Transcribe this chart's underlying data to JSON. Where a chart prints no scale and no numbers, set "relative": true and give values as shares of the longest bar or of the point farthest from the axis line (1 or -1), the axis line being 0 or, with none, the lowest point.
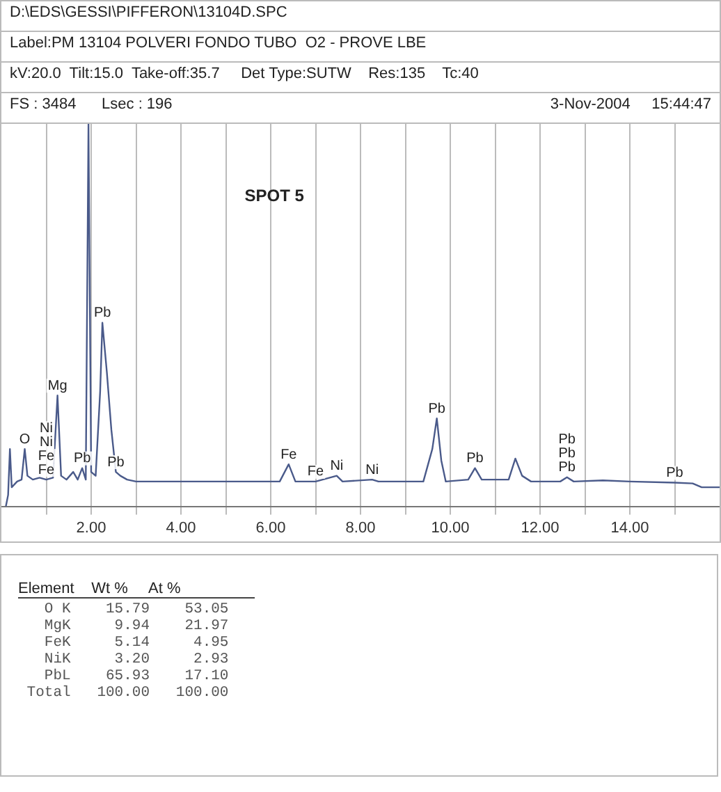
{
  "chart_data": {
    "type": "line",
    "title": "SPOT 5",
    "relative": true,
    "grid": "x",
    "legend": false,
    "marker": "none",
    "line_style": "solid",
    "xlim": [
      0,
      16
    ],
    "xticks": [
      {
        "value": 1,
        "label": null
      },
      {
        "value": 2,
        "label": "2.00"
      },
      {
        "value": 3,
        "label": null
      },
      {
        "value": 4,
        "label": "4.00"
      },
      {
        "value": 5,
        "label": null
      },
      {
        "value": 6,
        "label": "6.00"
      },
      {
        "value": 7,
        "label": null
      },
      {
        "value": 8,
        "label": "8.00"
      },
      {
        "value": 9,
        "label": null
      },
      {
        "value": 10,
        "label": "10.00"
      },
      {
        "value": 11,
        "label": null
      },
      {
        "value": 12,
        "label": "12.00"
      },
      {
        "value": 13,
        "label": null
      },
      {
        "value": 14,
        "label": "14.00"
      },
      {
        "value": 15,
        "label": null
      }
    ],
    "series": [
      {
        "color": "#4a5a8a",
        "x": [
          0.1,
          0.15,
          0.19,
          0.23,
          0.35,
          0.45,
          0.52,
          0.58,
          0.7,
          0.85,
          1.0,
          1.15,
          1.25,
          1.33,
          1.45,
          1.6,
          1.7,
          1.8,
          1.88,
          1.94,
          2.0,
          2.1,
          2.2,
          2.25,
          2.35,
          2.45,
          2.55,
          2.65,
          2.8,
          3.0,
          4.0,
          5.0,
          6.2,
          6.4,
          6.55,
          7.0,
          7.47,
          7.6,
          8.26,
          8.4,
          9.4,
          9.6,
          9.7,
          9.8,
          9.9,
          10.4,
          10.55,
          10.7,
          11.3,
          11.45,
          11.6,
          11.8,
          12.45,
          12.6,
          12.75,
          13.4,
          14.0,
          15.0,
          15.4,
          15.6,
          16.0
        ],
        "values": [
          0,
          0.03,
          0.15,
          0.05,
          0.065,
          0.07,
          0.15,
          0.08,
          0.07,
          0.075,
          0.07,
          0.075,
          0.29,
          0.08,
          0.07,
          0.09,
          0.07,
          0.1,
          0.07,
          1,
          0.09,
          0.08,
          0.3,
          0.48,
          0.35,
          0.2,
          0.09,
          0.08,
          0.07,
          0.065,
          0.065,
          0.065,
          0.065,
          0.11,
          0.065,
          0.065,
          0.08,
          0.065,
          0.07,
          0.065,
          0.065,
          0.15,
          0.23,
          0.12,
          0.065,
          0.07,
          0.1,
          0.07,
          0.07,
          0.125,
          0.08,
          0.065,
          0.065,
          0.076,
          0.065,
          0.068,
          0.065,
          0.062,
          0.06,
          0.05,
          0.05
        ]
      }
    ],
    "annotations": [
      "D:\\EDS\\GESSI\\PIFFERON\\13104D.SPC",
      "Label:PM 13104 POLVERI FONDO TUBO  O2 - PROVE LBE",
      "kV:20.0  Tilt:15.0  Take-off:35.7     Det Type:SUTW    Res:135    Tc:40",
      "FS : 3484      Lsec : 196",
      "3-Nov-2004     15:44:47",
      {
        "text": "O",
        "x": 0.52,
        "y": 0.15
      },
      {
        "text": "Fe",
        "x": 1.0,
        "y": 0.07
      },
      {
        "text": "Fe",
        "x": 1.0,
        "y": 0.07
      },
      {
        "text": "Ni",
        "x": 1.0,
        "y": 0.07
      },
      "Ni",
      {
        "text": "Mg",
        "x": 1.25,
        "y": 0.29
      },
      {
        "text": "Pb",
        "x": 1.8,
        "y": 0.1
      },
      {
        "text": "Pb",
        "x": 2.25,
        "y": 0.48
      },
      {
        "text": "Pb",
        "x": 2.55,
        "y": 0.09
      },
      {
        "text": "Fe",
        "x": 6.4,
        "y": 0.11
      },
      {
        "text": "Fe",
        "x": 7.0,
        "y": 0.065
      },
      {
        "text": "Ni",
        "x": 7.47,
        "y": 0.08
      },
      {
        "text": "Ni",
        "x": 8.26,
        "y": 0.07
      },
      {
        "text": "Pb",
        "x": 9.7,
        "y": 0.23
      },
      {
        "text": "Pb",
        "x": 10.55,
        "y": 0.1
      },
      {
        "text": "Pb",
        "x": 12.6,
        "y": 0.076
      },
      {
        "text": "Pb",
        "x": 12.6,
        "y": 0.076
      },
      {
        "text": "Pb",
        "x": 12.6,
        "y": 0.076
      },
      {
        "text": "Pb",
        "x": 15.0,
        "y": 0.062
      },
      "Element    Wt %     At %",
      "   O K    15.79    53.05",
      "   MgK     9.94    21.97",
      "   FeK     5.14     4.95",
      "   NiK     3.20     2.93",
      "   PbL    65.93    17.10",
      " Total   100.00   100.00"
    ]
  }
}
